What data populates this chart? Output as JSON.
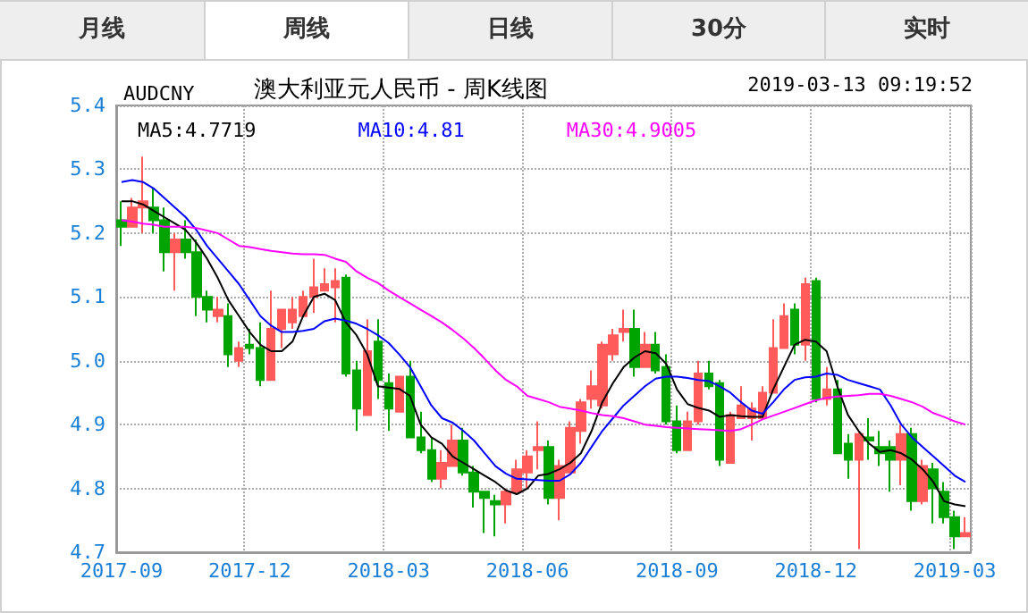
{
  "chart_data": {
    "type": "candlestick",
    "title": "澳大利亚元人民币 - 周K线图",
    "subtitle": "AUDCNY",
    "annotations": [
      "月线",
      "周线",
      "日线",
      "30分",
      "实时",
      "2019-03-13 09:19:52"
    ],
    "categories": [
      "2017-09",
      null,
      null,
      null,
      null,
      null,
      null,
      null,
      null,
      null,
      null,
      null,
      "2017-12",
      null,
      null,
      null,
      null,
      null,
      null,
      null,
      null,
      null,
      null,
      null,
      null,
      "2018-03",
      null,
      null,
      null,
      null,
      null,
      null,
      null,
      null,
      null,
      null,
      null,
      null,
      "2018-06",
      null,
      null,
      null,
      null,
      null,
      null,
      null,
      null,
      null,
      null,
      null,
      null,
      null,
      "2018-09",
      null,
      null,
      null,
      null,
      null,
      null,
      null,
      null,
      null,
      null,
      null,
      null,
      "2018-12",
      null,
      null,
      null,
      null,
      null,
      null,
      null,
      null,
      null,
      null,
      null,
      null,
      "2019-03",
      null
    ],
    "ohlc": [
      [
        5.22,
        5.25,
        5.18,
        5.21
      ],
      [
        5.21,
        5.255,
        5.21,
        5.24
      ],
      [
        5.24,
        5.32,
        5.2,
        5.25
      ],
      [
        5.24,
        5.27,
        5.2,
        5.22
      ],
      [
        5.22,
        5.24,
        5.14,
        5.17
      ],
      [
        5.17,
        5.2,
        5.11,
        5.19
      ],
      [
        5.19,
        5.22,
        5.16,
        5.17
      ],
      [
        5.17,
        5.19,
        5.07,
        5.1
      ],
      [
        5.1,
        5.11,
        5.06,
        5.08
      ],
      [
        5.07,
        5.1,
        5.06,
        5.08
      ],
      [
        5.07,
        5.09,
        4.99,
        5.01
      ],
      [
        5.0,
        5.03,
        4.99,
        5.02
      ],
      [
        5.025,
        5.05,
        5.01,
        5.02
      ],
      [
        5.02,
        5.06,
        4.96,
        4.97
      ],
      [
        4.97,
        5.11,
        4.97,
        5.05
      ],
      [
        5.05,
        5.08,
        5.02,
        5.08
      ],
      [
        5.06,
        5.1,
        5.05,
        5.08
      ],
      [
        5.07,
        5.11,
        5.07,
        5.1
      ],
      [
        5.1,
        5.16,
        5.075,
        5.115
      ],
      [
        5.11,
        5.145,
        5.11,
        5.12
      ],
      [
        5.115,
        5.145,
        5.06,
        5.125
      ],
      [
        5.13,
        5.135,
        4.975,
        4.98
      ],
      [
        4.985,
        5.0,
        4.89,
        4.925
      ],
      [
        4.915,
        5.065,
        4.915,
        5.015
      ],
      [
        5.03,
        5.065,
        4.94,
        4.97
      ],
      [
        4.965,
        4.98,
        4.89,
        4.925
      ],
      [
        4.92,
        4.975,
        4.92,
        4.975
      ],
      [
        4.975,
        5.0,
        4.88,
        4.88
      ],
      [
        4.88,
        4.92,
        4.855,
        4.86
      ],
      [
        4.86,
        4.88,
        4.81,
        4.815
      ],
      [
        4.815,
        4.86,
        4.8,
        4.84
      ],
      [
        4.835,
        4.9,
        4.835,
        4.875
      ],
      [
        4.875,
        4.895,
        4.82,
        4.825
      ],
      [
        4.825,
        4.835,
        4.77,
        4.795
      ],
      [
        4.795,
        4.795,
        4.73,
        4.785
      ],
      [
        4.78,
        4.79,
        4.725,
        4.775
      ],
      [
        4.775,
        4.8,
        4.745,
        4.795
      ],
      [
        4.795,
        4.845,
        4.79,
        4.83
      ],
      [
        4.825,
        4.86,
        4.8,
        4.85
      ],
      [
        4.86,
        4.905,
        4.83,
        4.865
      ],
      [
        4.865,
        4.875,
        4.775,
        4.785
      ],
      [
        4.785,
        4.845,
        4.75,
        4.835
      ],
      [
        4.825,
        4.905,
        4.825,
        4.895
      ],
      [
        4.89,
        4.94,
        4.87,
        4.935
      ],
      [
        4.94,
        4.985,
        4.925,
        4.96
      ],
      [
        4.93,
        5.03,
        4.925,
        5.025
      ],
      [
        5.01,
        5.05,
        5.0,
        5.04
      ],
      [
        5.045,
        5.08,
        5.03,
        5.05
      ],
      [
        5.05,
        5.08,
        4.975,
        4.99
      ],
      [
        4.99,
        5.045,
        4.99,
        5.025
      ],
      [
        5.025,
        5.045,
        4.98,
        4.985
      ],
      [
        4.99,
        5.01,
        4.9,
        4.905
      ],
      [
        4.905,
        4.93,
        4.855,
        4.86
      ],
      [
        4.86,
        4.92,
        4.86,
        4.905
      ],
      [
        4.905,
        5.0,
        4.9,
        4.98
      ],
      [
        4.98,
        5.0,
        4.955,
        4.96
      ],
      [
        4.965,
        4.97,
        4.835,
        4.845
      ],
      [
        4.84,
        4.92,
        4.84,
        4.915
      ],
      [
        4.91,
        4.96,
        4.91,
        4.93
      ],
      [
        4.91,
        4.935,
        4.875,
        4.925
      ],
      [
        4.91,
        4.96,
        4.91,
        4.95
      ],
      [
        4.95,
        5.065,
        4.95,
        5.02
      ],
      [
        5.02,
        5.09,
        5.02,
        5.07
      ],
      [
        5.08,
        5.09,
        5.01,
        5.025
      ],
      [
        5.025,
        5.13,
        5.0,
        5.12
      ],
      [
        5.125,
        5.13,
        4.935,
        4.94
      ],
      [
        4.94,
        4.99,
        4.93,
        4.955
      ],
      [
        4.955,
        4.97,
        4.855,
        4.855
      ],
      [
        4.87,
        4.885,
        4.815,
        4.845
      ],
      [
        4.845,
        4.89,
        4.705,
        4.885
      ],
      [
        4.88,
        4.91,
        4.845,
        4.875
      ],
      [
        4.865,
        4.89,
        4.835,
        4.855
      ],
      [
        4.865,
        4.875,
        4.795,
        4.845
      ],
      [
        4.845,
        4.9,
        4.805,
        4.885
      ],
      [
        4.885,
        4.895,
        4.765,
        4.78
      ],
      [
        4.78,
        4.845,
        4.775,
        4.835
      ],
      [
        4.83,
        4.84,
        4.745,
        4.8
      ],
      [
        4.795,
        4.81,
        4.745,
        4.755
      ],
      [
        4.755,
        4.765,
        4.705,
        4.725
      ],
      [
        4.725,
        4.755,
        4.725,
        4.73
      ]
    ],
    "colors": [
      "#00a400",
      "#ff5b5b",
      "#ff5b5b",
      "#00a400",
      "#00a400",
      "#ff5b5b",
      "#00a400",
      "#00a400",
      "#00a400",
      "#ff5b5b",
      "#00a400",
      "#ff5b5b",
      "#00a400",
      "#00a400",
      "#ff5b5b",
      "#ff5b5b",
      "#ff5b5b",
      "#ff5b5b",
      "#ff5b5b",
      "#ff5b5b",
      "#ff5b5b",
      "#00a400",
      "#00a400",
      "#ff5b5b",
      "#00a400",
      "#00a400",
      "#ff5b5b",
      "#00a400",
      "#00a400",
      "#00a400",
      "#ff5b5b",
      "#ff5b5b",
      "#00a400",
      "#00a400",
      "#00a400",
      "#00a400",
      "#ff5b5b",
      "#ff5b5b",
      "#ff5b5b",
      "#ff5b5b",
      "#00a400",
      "#ff5b5b",
      "#ff5b5b",
      "#ff5b5b",
      "#ff5b5b",
      "#ff5b5b",
      "#ff5b5b",
      "#ff5b5b",
      "#00a400",
      "#ff5b5b",
      "#00a400",
      "#00a400",
      "#00a400",
      "#ff5b5b",
      "#ff5b5b",
      "#00a400",
      "#00a400",
      "#ff5b5b",
      "#ff5b5b",
      "#ff5b5b",
      "#ff5b5b",
      "#ff5b5b",
      "#ff5b5b",
      "#00a400",
      "#ff5b5b",
      "#00a400",
      "#ff5b5b",
      "#00a400",
      "#00a400",
      "#ff5b5b",
      "#00a400",
      "#00a400",
      "#00a400",
      "#ff5b5b",
      "#00a400",
      "#ff5b5b",
      "#00a400",
      "#00a400",
      "#00a400",
      "#ff5b5b"
    ],
    "series": [
      {
        "type": "line",
        "name": "MA5:4.7719",
        "color": "#000000",
        "values": [
          5.25,
          5.25,
          5.245,
          5.235,
          5.225,
          5.215,
          5.205,
          5.185,
          5.16,
          5.13,
          5.095,
          5.07,
          5.045,
          5.025,
          5.015,
          5.015,
          5.03,
          5.07,
          5.1,
          5.105,
          5.095,
          5.06,
          5.04,
          5.01,
          4.96,
          4.958,
          4.956,
          4.945,
          4.9,
          4.88,
          4.87,
          4.85,
          4.84,
          4.83,
          4.82,
          4.81,
          4.797,
          4.791,
          4.8,
          4.82,
          4.823,
          4.83,
          4.84,
          4.855,
          4.89,
          4.935,
          4.965,
          4.99,
          5.005,
          5.015,
          5.012,
          4.995,
          4.955,
          4.932,
          4.926,
          4.922,
          4.912,
          4.915,
          4.913,
          4.912,
          4.912,
          4.955,
          4.99,
          5.025,
          5.033,
          5.03,
          5.015,
          4.96,
          4.915,
          4.89,
          4.87,
          4.857,
          4.86,
          4.855,
          4.845,
          4.83,
          4.81,
          4.78,
          4.775,
          4.772
        ]
      },
      {
        "type": "line",
        "name": "MA10:4.81",
        "color": "#0000ff",
        "values": [
          5.28,
          5.283,
          5.28,
          5.27,
          5.255,
          5.24,
          5.225,
          5.205,
          5.18,
          5.16,
          5.14,
          5.12,
          5.095,
          5.07,
          5.055,
          5.045,
          5.045,
          5.047,
          5.05,
          5.062,
          5.066,
          5.063,
          5.058,
          5.05,
          5.04,
          5.028,
          5.01,
          4.99,
          4.96,
          4.93,
          4.91,
          4.903,
          4.89,
          4.875,
          4.855,
          4.835,
          4.823,
          4.815,
          4.814,
          4.813,
          4.812,
          4.812,
          4.822,
          4.84,
          4.865,
          4.89,
          4.91,
          4.93,
          4.945,
          4.96,
          4.972,
          4.975,
          4.975,
          4.973,
          4.97,
          4.968,
          4.96,
          4.95,
          4.935,
          4.922,
          4.917,
          4.935,
          4.955,
          4.97,
          4.974,
          4.975,
          4.98,
          4.978,
          4.97,
          4.965,
          4.96,
          4.955,
          4.93,
          4.9,
          4.88,
          4.865,
          4.85,
          4.835,
          4.82,
          4.81
        ]
      },
      {
        "type": "line",
        "name": "MA30:4.9005",
        "color": "#ff00ff",
        "values": [
          5.22,
          5.218,
          5.215,
          5.213,
          5.21,
          5.21,
          5.21,
          5.208,
          5.204,
          5.2,
          5.19,
          5.18,
          5.178,
          5.175,
          5.172,
          5.17,
          5.168,
          5.167,
          5.167,
          5.166,
          5.16,
          5.155,
          5.14,
          5.13,
          5.122,
          5.11,
          5.1,
          5.09,
          5.08,
          5.07,
          5.06,
          5.048,
          5.035,
          5.02,
          5.003,
          4.985,
          4.97,
          4.96,
          4.945,
          4.94,
          4.935,
          4.928,
          4.925,
          4.922,
          4.918,
          4.915,
          4.913,
          4.91,
          4.905,
          4.9,
          4.898,
          4.896,
          4.895,
          4.894,
          4.893,
          4.892,
          4.891,
          4.89,
          4.893,
          4.9,
          4.908,
          4.914,
          4.92,
          4.926,
          4.932,
          4.938,
          4.942,
          4.944,
          4.945,
          4.946,
          4.948,
          4.948,
          4.945,
          4.94,
          4.935,
          4.928,
          4.918,
          4.912,
          4.905,
          4.9
        ]
      }
    ],
    "ylim": [
      4.7,
      5.4
    ],
    "yticks": [
      4.7,
      4.8,
      4.9,
      {
        "value": 5.0,
        "label": "5.0"
      },
      5.1,
      5.2,
      5.3,
      5.4
    ],
    "grid": true,
    "legend": "top left",
    "line_style": "solid",
    "marker": "none"
  }
}
